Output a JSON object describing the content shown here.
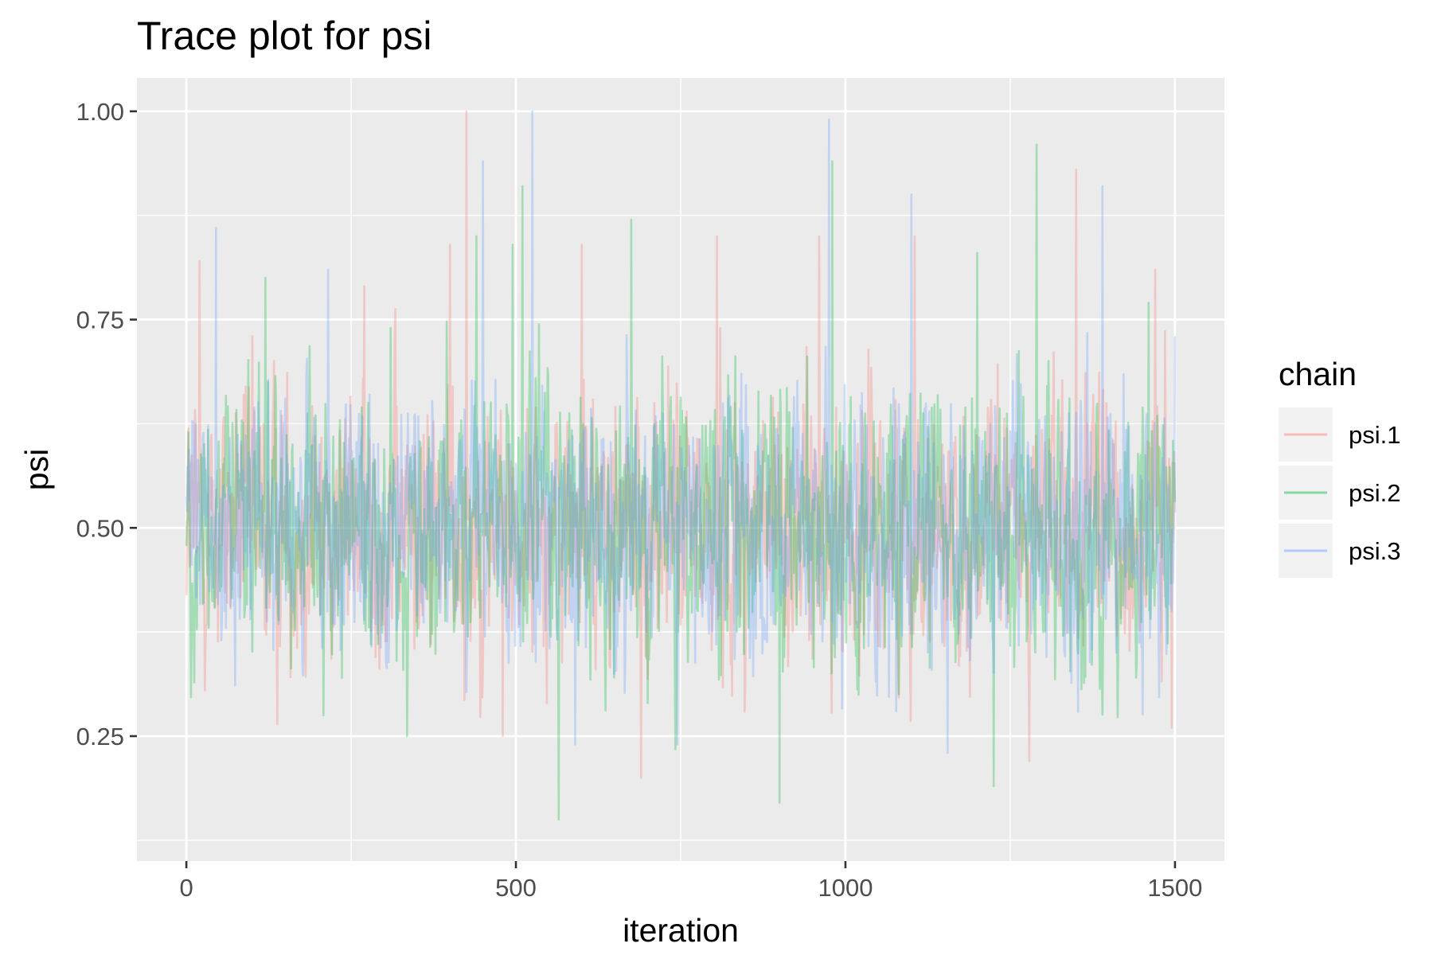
{
  "chart_data": {
    "type": "line",
    "title": "Trace plot for psi",
    "xlabel": "iteration",
    "ylabel": "psi",
    "xlim": [
      -75,
      1575
    ],
    "ylim": [
      0.1,
      1.04
    ],
    "x_ticks": [
      0,
      500,
      1000,
      1500
    ],
    "x_tick_labels": [
      "0",
      "500",
      "1000",
      "1500"
    ],
    "y_ticks": [
      0.25,
      0.5,
      0.75,
      1.0
    ],
    "y_tick_labels": [
      "0.25",
      "0.50",
      "0.75",
      "1.00"
    ],
    "grid": true,
    "legend_title": "chain",
    "legend_position": "right",
    "n_iterations": 1500,
    "series": [
      {
        "name": "psi.1",
        "color": "#F8766D",
        "alpha": 0.25,
        "mean": 0.5,
        "peaks": [
          [
            20,
            0.82
          ],
          [
            100,
            0.73
          ],
          [
            270,
            0.79
          ],
          [
            400,
            0.84
          ],
          [
            425,
            1.0
          ],
          [
            480,
            0.25
          ],
          [
            600,
            0.84
          ],
          [
            690,
            0.2
          ],
          [
            805,
            0.85
          ],
          [
            960,
            0.85
          ],
          [
            1105,
            0.85
          ],
          [
            1350,
            0.93
          ],
          [
            1470,
            0.81
          ],
          [
            1495,
            0.26
          ]
        ]
      },
      {
        "name": "psi.2",
        "color": "#00BA38",
        "alpha": 0.25,
        "mean": 0.5,
        "peaks": [
          [
            120,
            0.8
          ],
          [
            310,
            0.74
          ],
          [
            335,
            0.25
          ],
          [
            440,
            0.85
          ],
          [
            495,
            0.84
          ],
          [
            510,
            0.91
          ],
          [
            565,
            0.15
          ],
          [
            675,
            0.87
          ],
          [
            900,
            0.17
          ],
          [
            980,
            0.94
          ],
          [
            1200,
            0.83
          ],
          [
            1225,
            0.19
          ],
          [
            1290,
            0.96
          ],
          [
            1460,
            0.77
          ]
        ]
      },
      {
        "name": "psi.3",
        "color": "#619CFF",
        "alpha": 0.25,
        "mean": 0.5,
        "peaks": [
          [
            45,
            0.86
          ],
          [
            215,
            0.81
          ],
          [
            450,
            0.94
          ],
          [
            525,
            1.0
          ],
          [
            590,
            0.24
          ],
          [
            745,
            0.24
          ],
          [
            975,
            0.99
          ],
          [
            1100,
            0.9
          ],
          [
            1155,
            0.23
          ],
          [
            1390,
            0.91
          ],
          [
            1500,
            0.73
          ]
        ]
      }
    ]
  }
}
